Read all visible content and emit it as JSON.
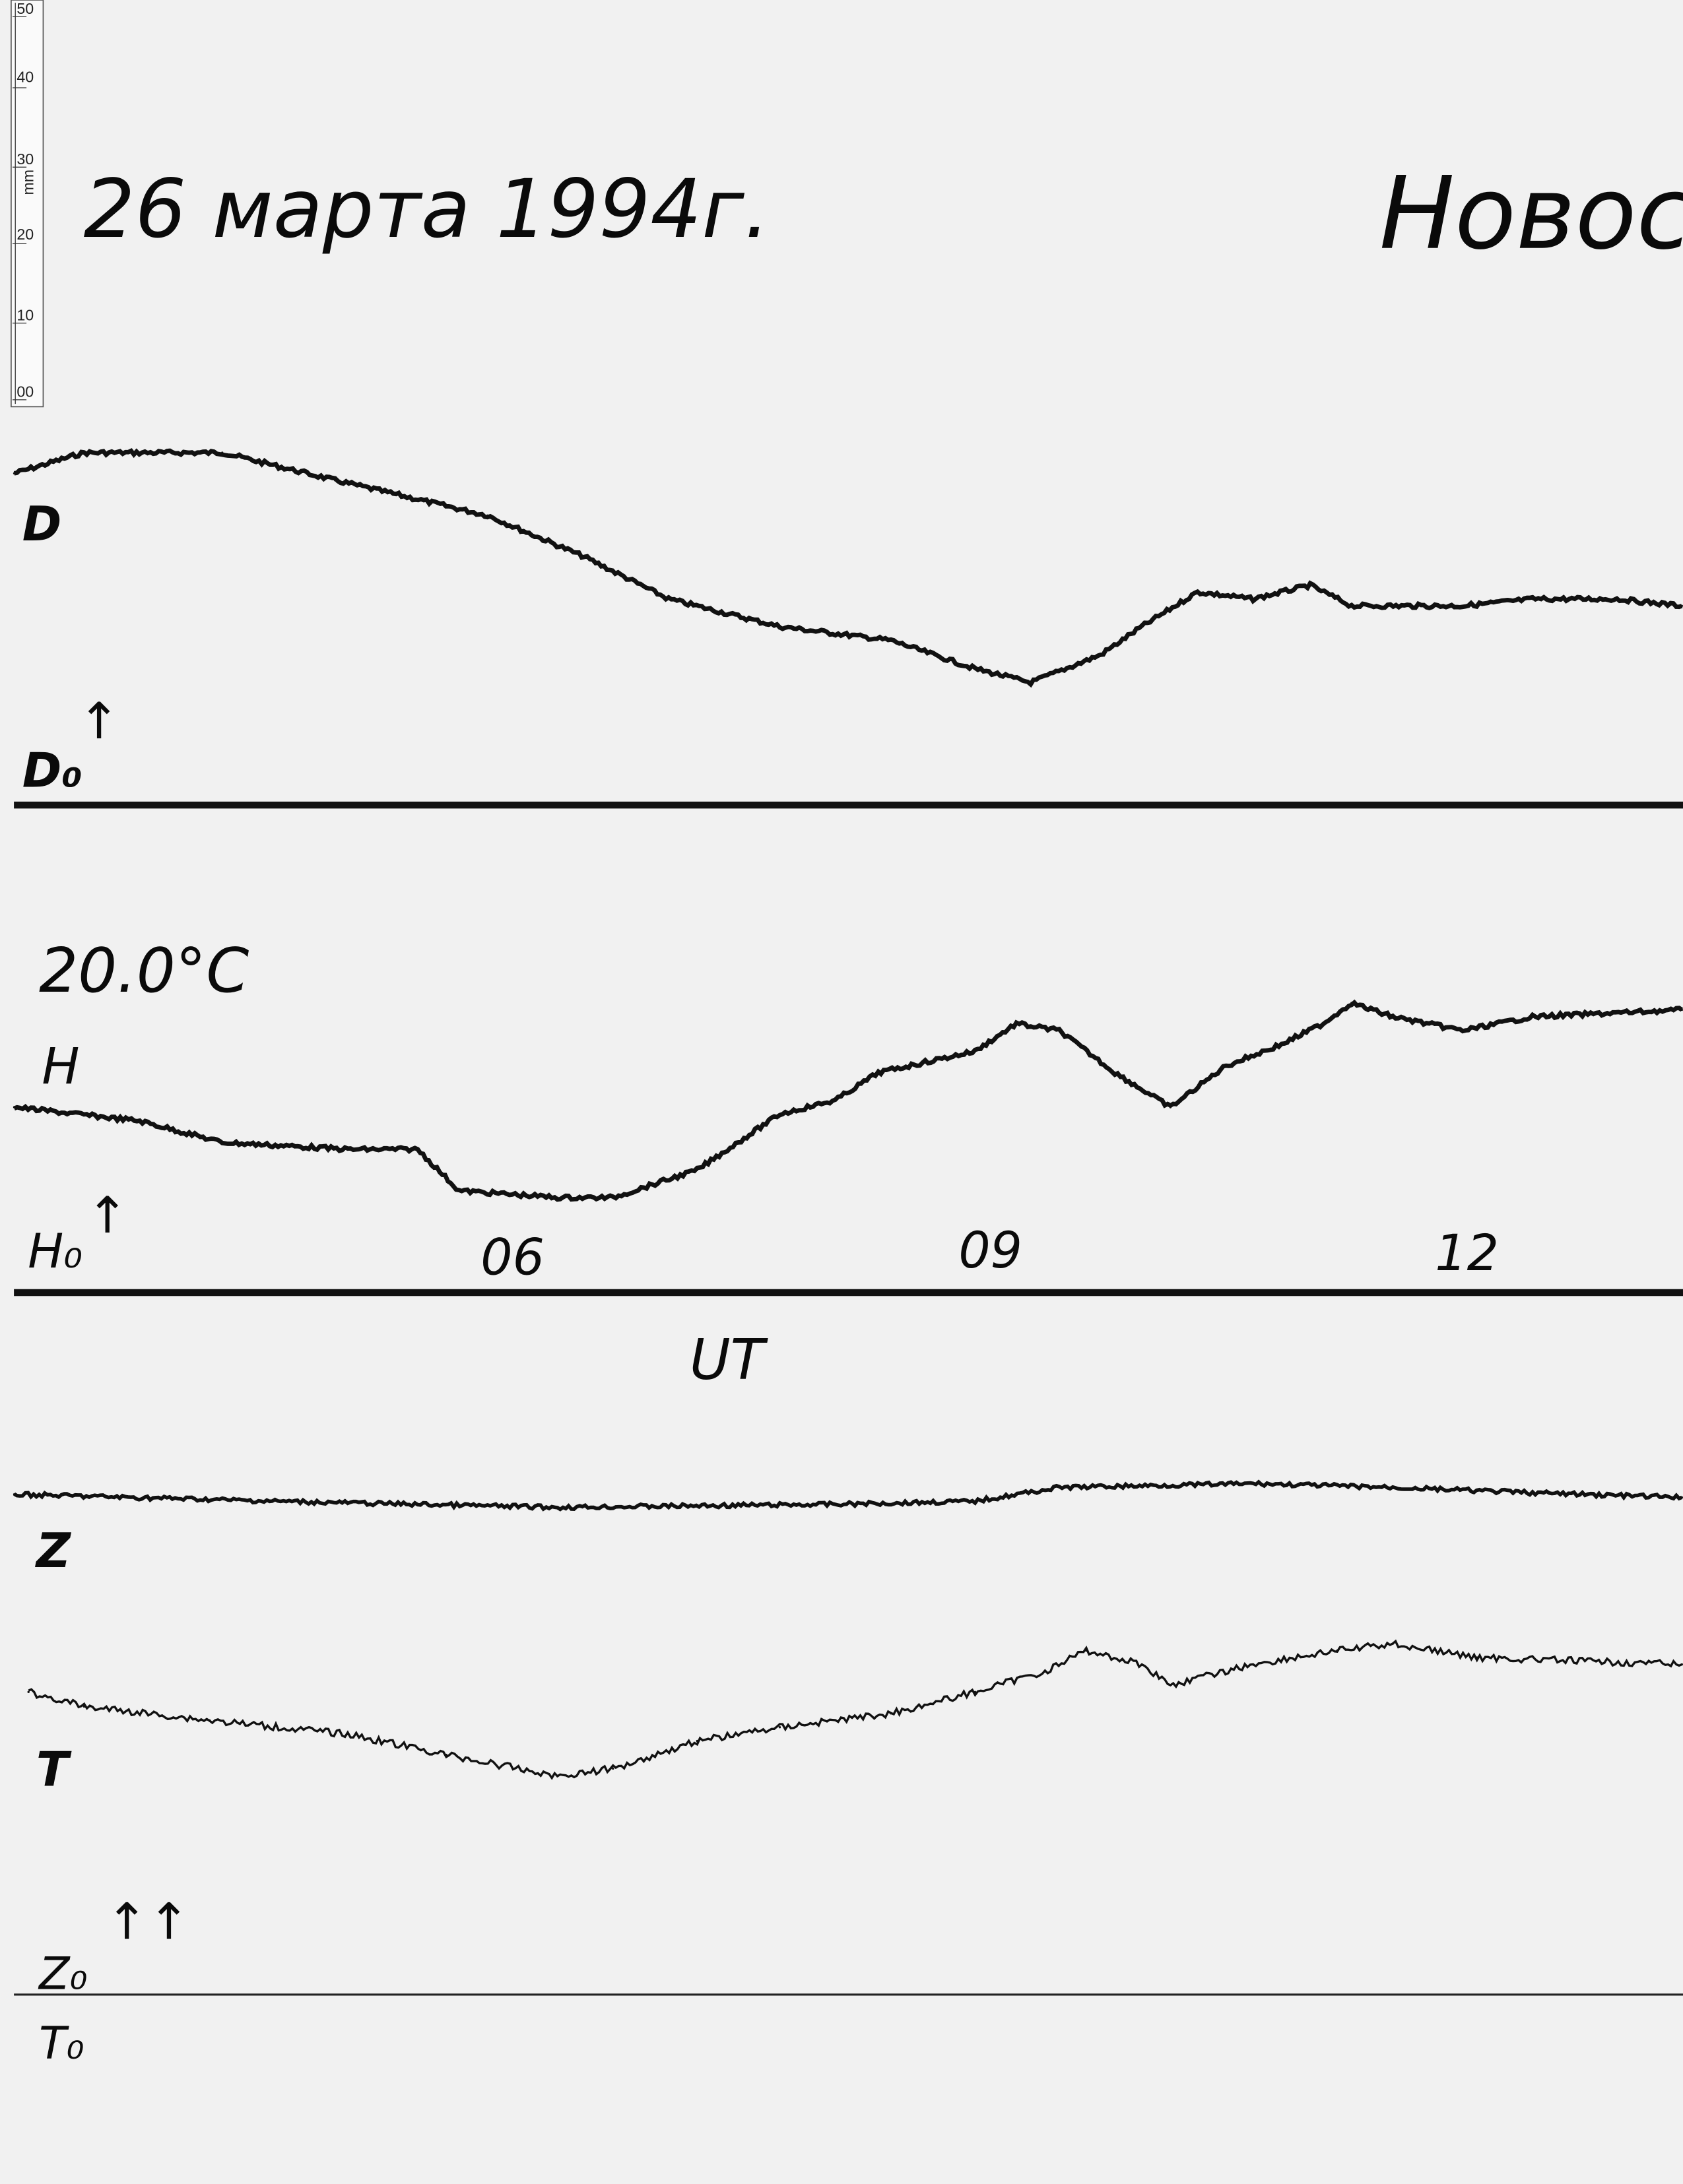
{
  "header": {
    "date": "26 марта 1994г.",
    "station": "Новос"
  },
  "ruler": {
    "unit": "mm",
    "ticks": [
      "50",
      "40",
      "30",
      "20",
      "10",
      "00"
    ]
  },
  "labels": {
    "d": "D",
    "d0": "D₀",
    "temperature": "20.0°C",
    "h": "H",
    "h0": "H₀",
    "time_axis": "UT",
    "z": "Z",
    "t": "T",
    "z0": "Z₀",
    "t0": "T₀",
    "arrow": "↑",
    "double_arrow": "↑↑"
  },
  "chart_data": {
    "type": "line",
    "title": "26 марта 1994г.",
    "xlabel": "UT",
    "ylabel": "",
    "x_unit": "hours UT",
    "y_unit": "mm above baseline (ruler scale)",
    "xticks": [
      "06",
      "09",
      "12"
    ],
    "xlim": [
      2.8,
      13.3
    ],
    "grid": false,
    "series": [
      {
        "name": "D",
        "baseline": "D₀",
        "x": [
          2.8,
          3.24,
          4.11,
          4.82,
          5.78,
          6.39,
          6.92,
          7.62,
          8.32,
          8.85,
          9.2,
          9.64,
          9.9,
          10.25,
          10.6,
          10.96,
          11.22,
          11.92,
          12.36,
          12.89,
          13.3
        ],
        "y": [
          43.3,
          46,
          46,
          42.4,
          37.8,
          32.4,
          26.9,
          23.3,
          21.5,
          17.8,
          16,
          19.6,
          23.3,
          27.8,
          26.9,
          28.7,
          26,
          26,
          26.9,
          26.9,
          26
        ]
      },
      {
        "name": "H",
        "baseline": "H₀",
        "x": [
          2.8,
          3.59,
          4.11,
          4.9,
          5.34,
          5.6,
          6.22,
          6.57,
          7.1,
          7.62,
          7.97,
          8.24,
          8.85,
          9.11,
          9.38,
          9.73,
          10.08,
          10.43,
          10.78,
          11.04,
          11.22,
          11.48,
          11.92,
          12.36,
          13.3
        ],
        "y": [
          24.2,
          22.4,
          19.6,
          18.7,
          18.7,
          13.3,
          12.4,
          12.4,
          16,
          23.3,
          25.1,
          28.7,
          31.5,
          35.1,
          34.2,
          28.7,
          24.2,
          29.6,
          32.4,
          35.1,
          37.8,
          36,
          34.2,
          36,
          36.9
        ]
      },
      {
        "name": "Z",
        "baseline": "Z₀",
        "x": [
          2.8,
          4.46,
          6.22,
          7.97,
          8.85,
          9.38,
          10.6,
          11.48,
          12.36,
          13.3
        ],
        "y": [
          65.3,
          64.4,
          63.6,
          64,
          64.4,
          66.2,
          66.7,
          66.2,
          65.5,
          64.9
        ]
      },
      {
        "name": "T",
        "baseline": "T₀",
        "x": [
          2.89,
          3.24,
          4.03,
          4.9,
          5.52,
          6.22,
          6.57,
          7.1,
          7.62,
          8.32,
          8.85,
          9.29,
          9.55,
          9.9,
          10.08,
          10.6,
          11.13,
          11.48,
          12.01,
          13.3
        ],
        "y": [
          39.5,
          37.6,
          35.8,
          34,
          31.3,
          28.5,
          29.5,
          33.1,
          34.9,
          36.7,
          39.5,
          42.2,
          44.9,
          43.1,
          40.4,
          43.1,
          44.9,
          45.8,
          44,
          43.1
        ]
      }
    ],
    "colors": {
      "trace": "#111111",
      "paper": "#f1f1f1"
    }
  }
}
